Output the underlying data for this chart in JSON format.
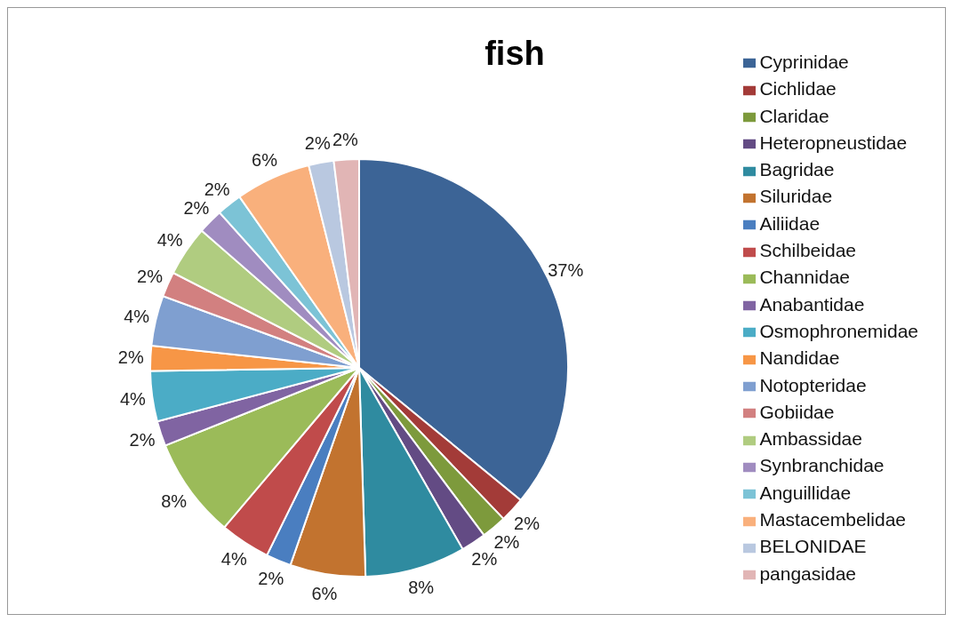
{
  "chart_data": {
    "type": "pie",
    "title": "fish",
    "legend": "right",
    "categories": [
      "Cyprinidae",
      "Cichlidae",
      "Claridae",
      "Heteropneustidae",
      "Bagridae",
      "Siluridae",
      "Ailiidae",
      "Schilbeidae",
      "Channidae",
      "Anabantidae",
      "Osmophronemidae",
      "Nandidae",
      "Notopteridae",
      "Gobiidae",
      "Ambassidae",
      "Synbranchidae",
      "Anguillidae",
      "Mastacembelidae",
      "BELONIDAE",
      "pangasidae"
    ],
    "values": [
      37,
      2,
      2,
      2,
      8,
      6,
      2,
      4,
      8,
      2,
      4,
      2,
      4,
      2,
      4,
      2,
      2,
      6,
      2,
      2
    ],
    "value_labels": [
      "37%",
      "2%",
      "2%",
      "2%",
      "8%",
      "6%",
      "2%",
      "4%",
      "8%",
      "2%",
      "4%",
      "2%",
      "4%",
      "2%",
      "4%",
      "2%",
      "2%",
      "6%",
      "2%",
      "2%"
    ],
    "colors": [
      "#3c6496",
      "#a33b38",
      "#7d9a3c",
      "#634b84",
      "#2f8ba0",
      "#c2732f",
      "#4a7ec0",
      "#c04b4b",
      "#9bbb59",
      "#8064a2",
      "#4bacc6",
      "#f79646",
      "#7f9fd0",
      "#d28080",
      "#b0cc80",
      "#a08cc0",
      "#7cc3d6",
      "#f9b07c",
      "#b9c8e0",
      "#e1b5b5"
    ]
  }
}
